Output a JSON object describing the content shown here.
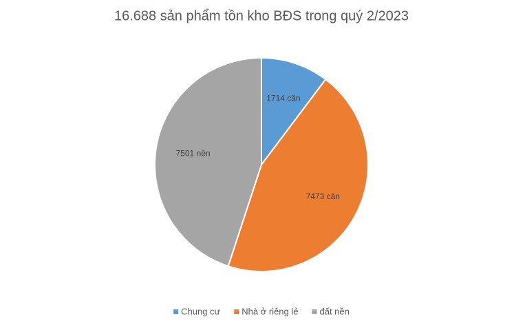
{
  "chart_data": {
    "type": "pie",
    "title": "16.688 sản phẩm tồn kho BĐS trong quý 2/2023",
    "categories": [
      "Chung cư",
      "Nhà ở riêng lẻ",
      "đất nền"
    ],
    "values": [
      1714,
      7473,
      7501
    ],
    "value_labels": [
      "1714 căn",
      "7473 căn",
      "7501 nền"
    ],
    "colors": [
      "#5b9bd5",
      "#ed7d31",
      "#a5a5a5"
    ],
    "legend": "bottom"
  }
}
